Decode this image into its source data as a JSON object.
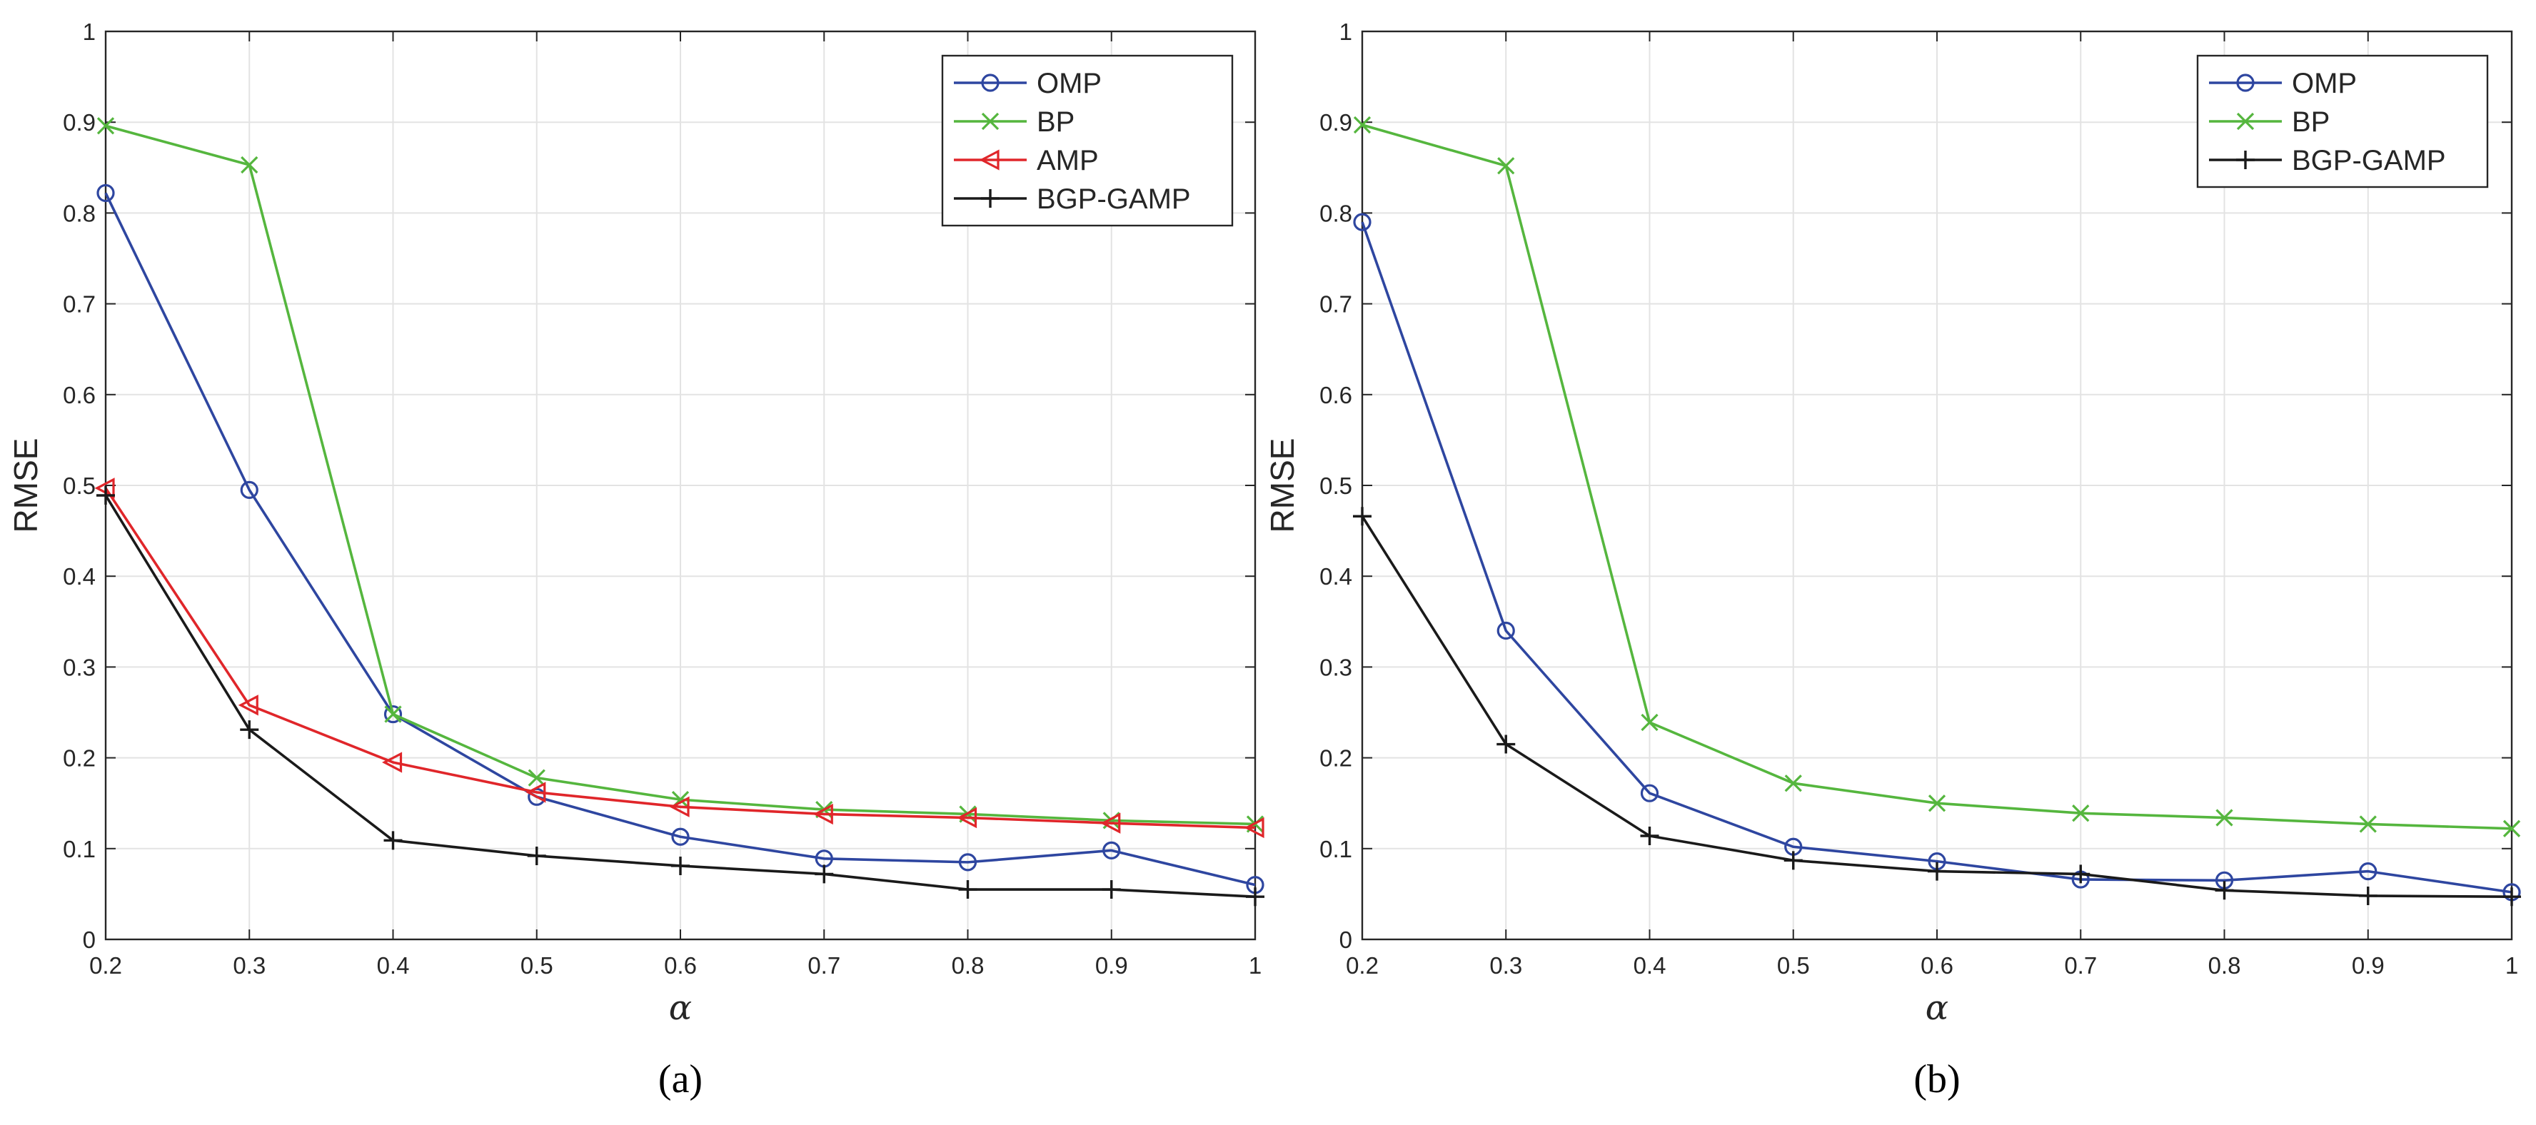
{
  "chart_data": [
    {
      "type": "line",
      "caption": "(a)",
      "xlabel": "α",
      "ylabel": "RMSE",
      "x": [
        0.2,
        0.3,
        0.4,
        0.5,
        0.6,
        0.7,
        0.8,
        0.9,
        1
      ],
      "xticks": [
        "0.2",
        "0.3",
        "0.4",
        "0.5",
        "0.6",
        "0.7",
        "0.8",
        "0.9",
        "1"
      ],
      "yticks": [
        "0",
        "0.1",
        "0.2",
        "0.3",
        "0.4",
        "0.5",
        "0.6",
        "0.7",
        "0.8",
        "0.9",
        "1"
      ],
      "xlim": [
        0.2,
        1
      ],
      "ylim": [
        0,
        1
      ],
      "grid": true,
      "legend_position": "top-right",
      "series": [
        {
          "name": "OMP",
          "color": "#2e46a0",
          "marker": "circle",
          "values": [
            0.822,
            0.495,
            0.248,
            0.157,
            0.113,
            0.089,
            0.085,
            0.098,
            0.06
          ]
        },
        {
          "name": "BP",
          "color": "#55b63e",
          "marker": "x",
          "values": [
            0.896,
            0.853,
            0.248,
            0.178,
            0.154,
            0.143,
            0.138,
            0.131,
            0.127
          ]
        },
        {
          "name": "AMP",
          "color": "#e0262a",
          "marker": "triangle-left",
          "values": [
            0.497,
            0.258,
            0.195,
            0.162,
            0.146,
            0.138,
            0.134,
            0.128,
            0.123
          ]
        },
        {
          "name": "BGP-GAMP",
          "color": "#1a1a1a",
          "marker": "plus",
          "values": [
            0.489,
            0.231,
            0.109,
            0.092,
            0.081,
            0.072,
            0.055,
            0.055,
            0.047
          ]
        }
      ]
    },
    {
      "type": "line",
      "caption": "(b)",
      "xlabel": "α",
      "ylabel": "RMSE",
      "x": [
        0.2,
        0.3,
        0.4,
        0.5,
        0.6,
        0.7,
        0.8,
        0.9,
        1
      ],
      "xticks": [
        "0.2",
        "0.3",
        "0.4",
        "0.5",
        "0.6",
        "0.7",
        "0.8",
        "0.9",
        "1"
      ],
      "yticks": [
        "0",
        "0.1",
        "0.2",
        "0.3",
        "0.4",
        "0.5",
        "0.6",
        "0.7",
        "0.8",
        "0.9",
        "1"
      ],
      "xlim": [
        0.2,
        1
      ],
      "ylim": [
        0,
        1
      ],
      "grid": true,
      "legend_position": "top-right",
      "series": [
        {
          "name": "OMP",
          "color": "#2e46a0",
          "marker": "circle",
          "values": [
            0.79,
            0.34,
            0.161,
            0.102,
            0.086,
            0.066,
            0.065,
            0.075,
            0.052
          ]
        },
        {
          "name": "BP",
          "color": "#55b63e",
          "marker": "x",
          "values": [
            0.897,
            0.852,
            0.239,
            0.172,
            0.15,
            0.139,
            0.134,
            0.127,
            0.122
          ]
        },
        {
          "name": "BGP-GAMP",
          "color": "#1a1a1a",
          "marker": "plus",
          "values": [
            0.466,
            0.215,
            0.114,
            0.087,
            0.075,
            0.072,
            0.054,
            0.048,
            0.047
          ]
        }
      ]
    }
  ]
}
